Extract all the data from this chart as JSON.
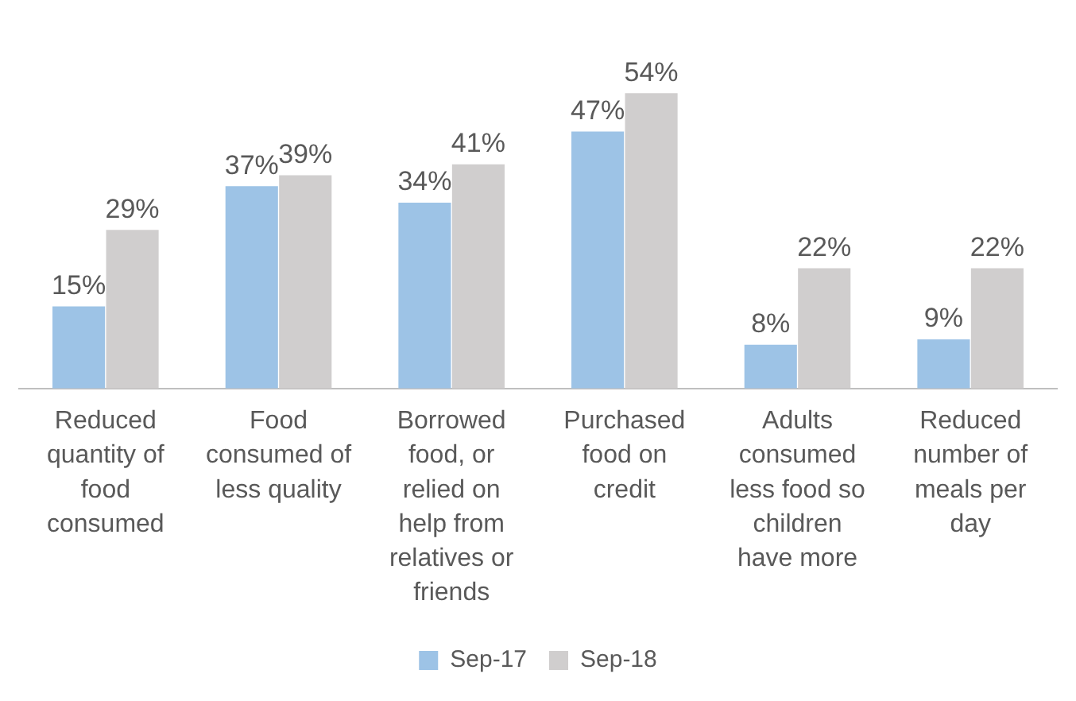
{
  "chart_data": {
    "type": "bar",
    "categories": [
      "Reduced quantity of food consumed",
      "Food consumed of less quality",
      "Borrowed food, or relied on help from relatives or friends",
      "Purchased food on credit",
      "Adults consumed less food so children have more",
      "Reduced number of meals per day"
    ],
    "series": [
      {
        "name": "Sep-17",
        "color": "#9dc3e6",
        "values": [
          15,
          37,
          34,
          47,
          8,
          9
        ],
        "value_labels": [
          "15%",
          "37%",
          "34%",
          "47%",
          "8%",
          "9%"
        ]
      },
      {
        "name": "Sep-18",
        "color": "#d0cece",
        "values": [
          29,
          39,
          41,
          54,
          22,
          22
        ],
        "value_labels": [
          "29%",
          "39%",
          "41%",
          "54%",
          "22%",
          "22%"
        ]
      }
    ],
    "legend": "bottom"
  }
}
